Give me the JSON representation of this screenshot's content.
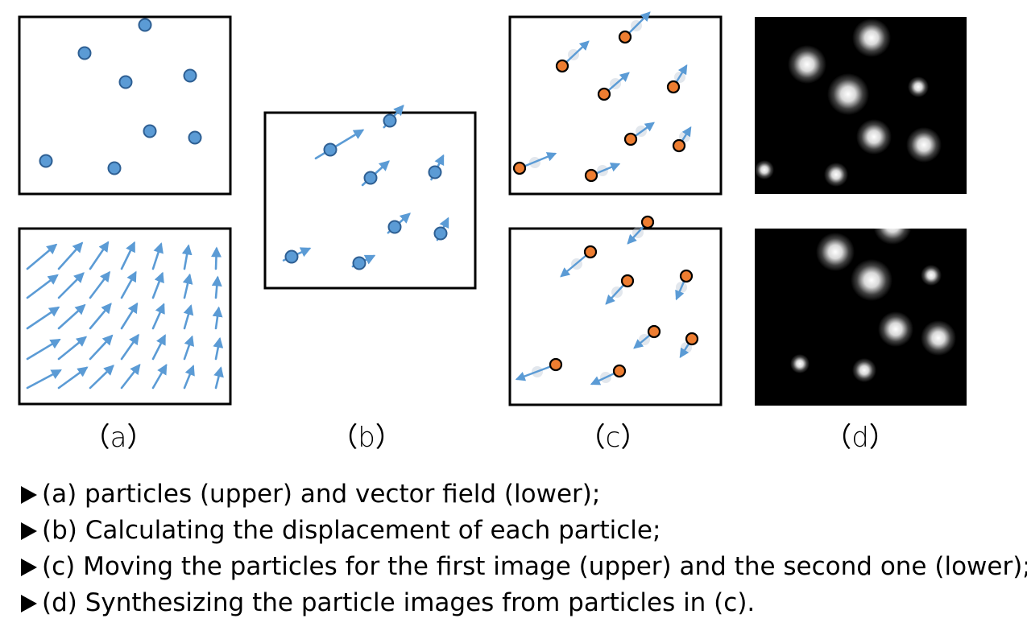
{
  "captions": {
    "a": "（a）",
    "b": "（b）",
    "c": "（c）",
    "d": "（d）"
  },
  "bullets": [
    "(a) particles (upper) and vector field (lower);",
    "(b) Calculating the displacement of each particle;",
    "(c) Moving the particles for the first image (upper) and the second one (lower);",
    "(d) Synthesizing the particle images from particles in (c)."
  ],
  "colors": {
    "particle_blue": "#5b9bd5",
    "particle_blue_edge": "#2e5f93",
    "particle_orange": "#ed7d31",
    "particle_orange_edge": "#000000",
    "arrow": "#5b9bd5",
    "panel_border": "#000000",
    "image_background": "#000000",
    "bullet_marker": "#000000"
  }
}
